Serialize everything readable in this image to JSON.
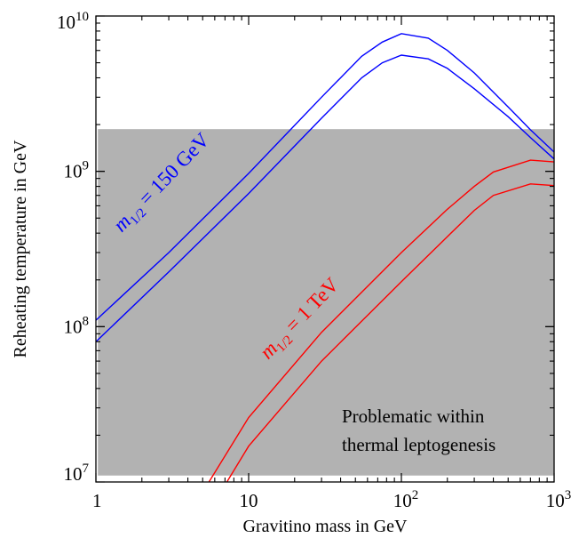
{
  "chart_data": {
    "type": "line",
    "xlabel": "Gravitino mass in GeV",
    "ylabel": "Reheating temperature in GeV",
    "xscale": "log",
    "yscale": "log",
    "xlim": [
      1,
      1000
    ],
    "ylim": [
      10000000,
      10000000000
    ],
    "grid": false,
    "legend": "none",
    "x_ticks": [
      {
        "value": 1,
        "label": "1"
      },
      {
        "value": 10,
        "label": "10"
      },
      {
        "value": 100,
        "base": "10",
        "exp": "2"
      },
      {
        "value": 1000,
        "base": "10",
        "exp": "3"
      }
    ],
    "y_ticks": [
      {
        "value": 10000000,
        "base": "10",
        "exp": "7"
      },
      {
        "value": 100000000,
        "base": "10",
        "exp": "8"
      },
      {
        "value": 1000000000,
        "base": "10",
        "exp": "9"
      },
      {
        "value": 10000000000,
        "base": "10",
        "exp": "10"
      }
    ],
    "shaded_region": {
      "x_range": [
        1.03,
        1000
      ],
      "y_range": [
        11000000,
        1870000000
      ],
      "color": "#b2b2b2",
      "annotation": [
        "Problematic within",
        "thermal leptogenesis"
      ]
    },
    "series_groups": [
      {
        "label_main": "m",
        "label_sub": "1/2",
        "label_rest": " = 150 GeV",
        "color": "#0000ff",
        "curves": [
          {
            "x": [
              1,
              3,
              10,
              30,
              55,
              75,
              100,
              150,
              200,
              300,
              500,
              700,
              1000
            ],
            "y": [
              110000000,
              300000000,
              970000000,
              3000000000,
              5500000000,
              6800000000,
              7700000000,
              7200000000,
              6000000000,
              4300000000,
              2600000000,
              1850000000,
              1330000000
            ]
          },
          {
            "x": [
              1,
              3,
              10,
              30,
              55,
              75,
              100,
              150,
              200,
              300,
              500,
              700,
              1000
            ],
            "y": [
              80000000,
              225000000,
              720000000,
              2200000000,
              4000000000,
              5000000000,
              5600000000,
              5300000000,
              4600000000,
              3400000000,
              2250000000,
              1650000000,
              1200000000
            ]
          }
        ]
      },
      {
        "label_main": "m",
        "label_sub": "1/2",
        "label_rest": " = 1 TeV",
        "color": "#ff0000",
        "curves": [
          {
            "x": [
              5.5,
              10,
              30,
              100,
              200,
              300,
              400,
              700,
              1000
            ],
            "y": [
              10000000,
              26000000,
              92000000,
              300000000,
              570000000,
              800000000,
              990000000,
              1180000000,
              1150000000
            ]
          },
          {
            "x": [
              7.2,
              10,
              30,
              100,
              200,
              300,
              400,
              700,
              1000
            ],
            "y": [
              10000000,
              17000000,
              60000000,
              195000000,
              380000000,
              560000000,
              700000000,
              830000000,
              810000000
            ]
          }
        ]
      }
    ]
  }
}
